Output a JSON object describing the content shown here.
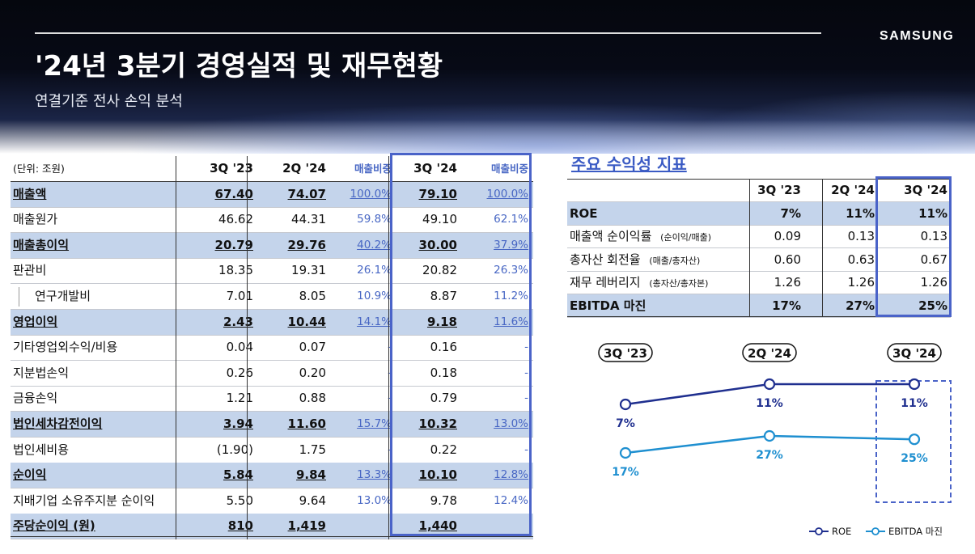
{
  "brand": "SAMSUNG",
  "title": "'24년 3분기 경영실적 및 재무현황",
  "subtitle": "연결기준 전사 손익 분석",
  "main_table": {
    "unit": "(단위: 조원)",
    "headers": [
      "3Q '23",
      "2Q '24",
      "매출비중",
      "3Q '24",
      "매출비중"
    ],
    "rows": [
      {
        "label": "매출액",
        "v1": "67.40",
        "v2": "74.07",
        "p1": "100.0%",
        "v3": "79.10",
        "p2": "100.0%"
      },
      {
        "label": "매출원가",
        "v1": "46.62",
        "v2": "44.31",
        "p1": "59.8%",
        "v3": "49.10",
        "p2": "62.1%"
      },
      {
        "label": "매출총이익",
        "v1": "20.79",
        "v2": "29.76",
        "p1": "40.2%",
        "v3": "30.00",
        "p2": "37.9%"
      },
      {
        "label": "판관비",
        "v1": "18.35",
        "v2": "19.31",
        "p1": "26.1%",
        "v3": "20.82",
        "p2": "26.3%"
      },
      {
        "label": "연구개발비",
        "v1": "7.01",
        "v2": "8.05",
        "p1": "10.9%",
        "v3": "8.87",
        "p2": "11.2%"
      },
      {
        "label": "영업이익",
        "v1": "2.43",
        "v2": "10.44",
        "p1": "14.1%",
        "v3": "9.18",
        "p2": "11.6%"
      },
      {
        "label": "기타영업외수익/비용",
        "v1": "0.04",
        "v2": "0.07",
        "p1": "-",
        "v3": "0.16",
        "p2": "-"
      },
      {
        "label": "지분법손익",
        "v1": "0.26",
        "v2": "0.20",
        "p1": "-",
        "v3": "0.18",
        "p2": "-"
      },
      {
        "label": "금융손익",
        "v1": "1.21",
        "v2": "0.88",
        "p1": "-",
        "v3": "0.79",
        "p2": "-"
      },
      {
        "label": "법인세차감전이익",
        "v1": "3.94",
        "v2": "11.60",
        "p1": "15.7%",
        "v3": "10.32",
        "p2": "13.0%"
      },
      {
        "label": "법인세비용",
        "v1": "(1.90)",
        "v2": "1.75",
        "p1": "-",
        "v3": "0.22",
        "p2": "-"
      },
      {
        "label": "순이익",
        "v1": "5.84",
        "v2": "9.84",
        "p1": "13.3%",
        "v3": "10.10",
        "p2": "12.8%"
      },
      {
        "label": "지배기업 소유주지분 순이익",
        "v1": "5.50",
        "v2": "9.64",
        "p1": "13.0%",
        "v3": "9.78",
        "p2": "12.4%"
      },
      {
        "label": "주당순이익 (원)",
        "v1": "810",
        "v2": "1,419",
        "p1": "",
        "v3": "1,440",
        "p2": ""
      }
    ]
  },
  "side_table": {
    "title": "주요 수익성 지표",
    "headers": [
      "3Q '23",
      "2Q '24",
      "3Q '24"
    ],
    "rows": [
      {
        "label": "ROE",
        "note": "",
        "v1": "7%",
        "v2": "11%",
        "v3": "11%"
      },
      {
        "label": "매출액 순이익률",
        "note": "(순이익/매출)",
        "v1": "0.09",
        "v2": "0.13",
        "v3": "0.13"
      },
      {
        "label": "총자산 회전율",
        "note": "(매출/총자산)",
        "v1": "0.60",
        "v2": "0.63",
        "v3": "0.67"
      },
      {
        "label": "재무 레버리지",
        "note": "(총자산/총자본)",
        "v1": "1.26",
        "v2": "1.26",
        "v3": "1.26"
      },
      {
        "label": "EBITDA 마진",
        "note": "",
        "v1": "17%",
        "v2": "27%",
        "v3": "25%"
      }
    ]
  },
  "chart_data": {
    "type": "line",
    "categories": [
      "3Q '23",
      "2Q '24",
      "3Q '24"
    ],
    "series": [
      {
        "name": "ROE",
        "values": [
          7,
          11,
          11
        ],
        "labels": [
          "7%",
          "11%",
          "11%"
        ],
        "color": "#1f2f8f"
      },
      {
        "name": "EBITDA 마진",
        "values": [
          17,
          27,
          25
        ],
        "labels": [
          "17%",
          "27%",
          "25%"
        ],
        "color": "#1e8fd0"
      }
    ]
  },
  "colors": {
    "accent": "#4a63c8",
    "highlight_row": "#c4d4eb",
    "roe": "#1f2f8f",
    "ebitda": "#1e8fd0"
  }
}
